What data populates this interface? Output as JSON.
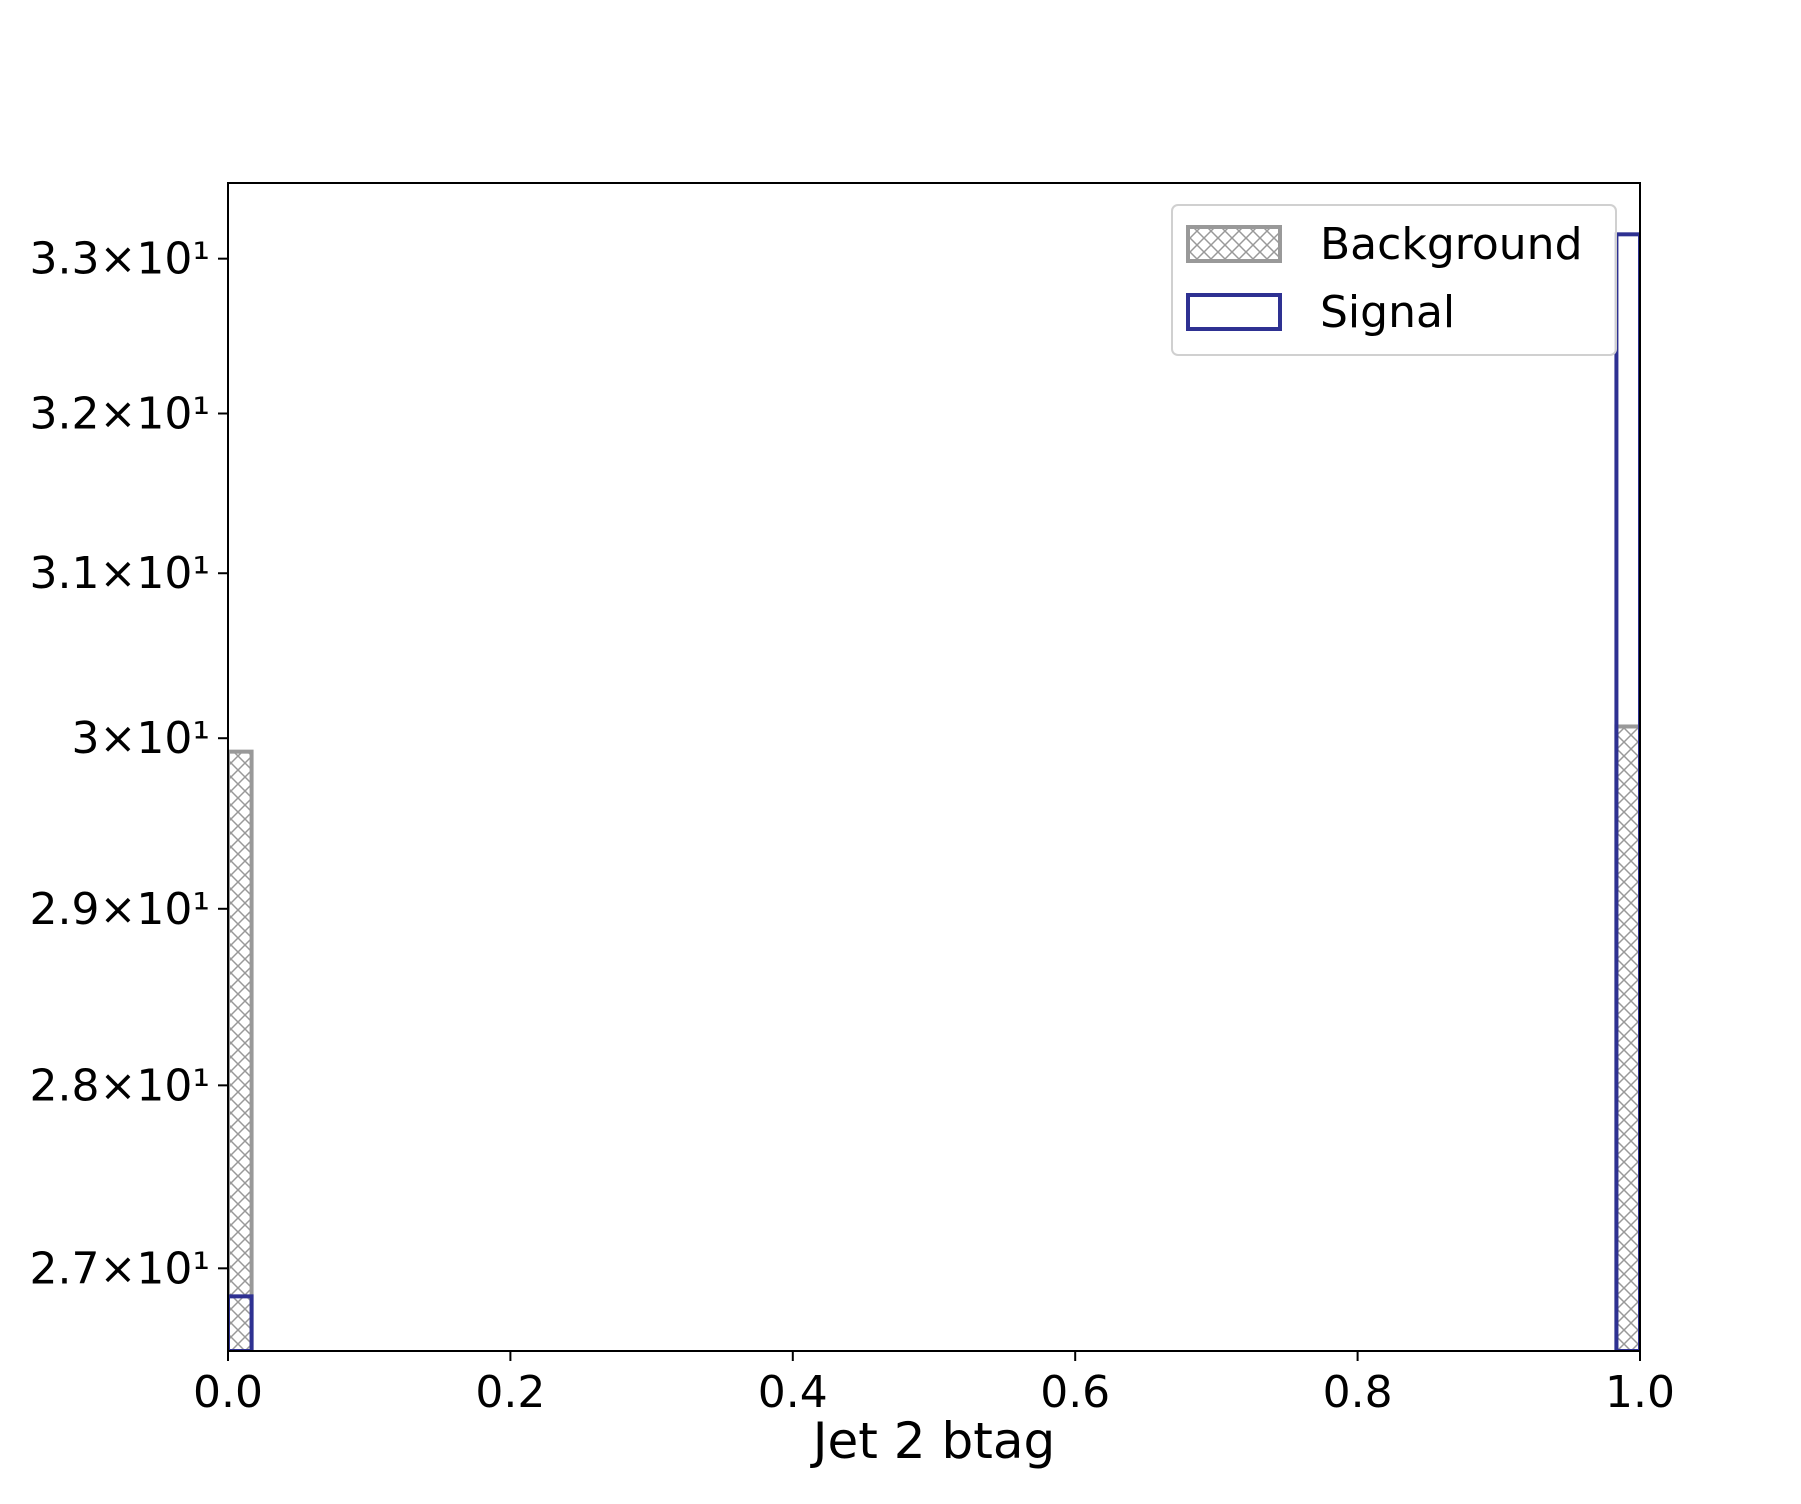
{
  "chart_data": {
    "type": "histogram",
    "xlabel": "Jet 2 btag",
    "bins": [
      0,
      0.0167,
      0.0333,
      0.05,
      0.0667,
      0.0833,
      0.1,
      0.1167,
      0.1333,
      0.15,
      0.1667,
      0.1833,
      0.2,
      0.2167,
      0.2333,
      0.25,
      0.2667,
      0.2833,
      0.3,
      0.3167,
      0.3333,
      0.35,
      0.3667,
      0.3833,
      0.4,
      0.4167,
      0.4333,
      0.45,
      0.4667,
      0.4833,
      0.5,
      0.5167,
      0.5333,
      0.55,
      0.5667,
      0.5833,
      0.6,
      0.6167,
      0.6333,
      0.65,
      0.6667,
      0.6833,
      0.7,
      0.7167,
      0.7333,
      0.75,
      0.7667,
      0.7833,
      0.8,
      0.8167,
      0.8333,
      0.85,
      0.8667,
      0.8833,
      0.9,
      0.9167,
      0.9333,
      0.95,
      0.9667,
      0.9833,
      1
    ],
    "series": [
      {
        "name": "Background",
        "color": "#999999",
        "hatch": true,
        "values": [
          29.92,
          0,
          0,
          0,
          0,
          0,
          0,
          0,
          0,
          0,
          0,
          0,
          0,
          0,
          0,
          0,
          0,
          0,
          0,
          0,
          0,
          0,
          0,
          0,
          0,
          0,
          0,
          0,
          0,
          0,
          0,
          0,
          0,
          0,
          0,
          0,
          0,
          0,
          0,
          0,
          0,
          0,
          0,
          0,
          0,
          0,
          0,
          0,
          0,
          0,
          0,
          0,
          0,
          0,
          0,
          0,
          0,
          0,
          0,
          30.07
        ]
      },
      {
        "name": "Signal",
        "color": "#2e3192",
        "hatch": false,
        "values": [
          26.85,
          0,
          0,
          0,
          0,
          0,
          0,
          0,
          0,
          0,
          0,
          0,
          0,
          0,
          0,
          0,
          0,
          0,
          0,
          0,
          0,
          0,
          0,
          0,
          0,
          0,
          0,
          0,
          0,
          0,
          0,
          0,
          0,
          0,
          0,
          0,
          0,
          0,
          0,
          0,
          0,
          0,
          0,
          0,
          0,
          0,
          0,
          0,
          0,
          0,
          0,
          0,
          0,
          0,
          0,
          0,
          0,
          0,
          0,
          33.16
        ]
      }
    ],
    "xlim": [
      0,
      1
    ],
    "xticks": [
      {
        "value": 0,
        "label": "0.0"
      },
      0.2,
      0.4,
      0.6,
      0.8,
      {
        "value": 1,
        "label": "1.0"
      }
    ],
    "ylim": [
      26.56,
      33.5
    ],
    "log_y": true,
    "yticks": [
      {
        "value": 27,
        "label": "2.7×10¹"
      },
      {
        "value": 28,
        "label": "2.8×10¹"
      },
      {
        "value": 29,
        "label": "2.9×10¹"
      },
      {
        "value": 30,
        "label": "3×10¹"
      },
      {
        "value": 31,
        "label": "3.1×10¹"
      },
      {
        "value": 32,
        "label": "3.2×10¹"
      },
      {
        "value": 33,
        "label": "3.3×10¹"
      }
    ],
    "legend": "upper right"
  }
}
